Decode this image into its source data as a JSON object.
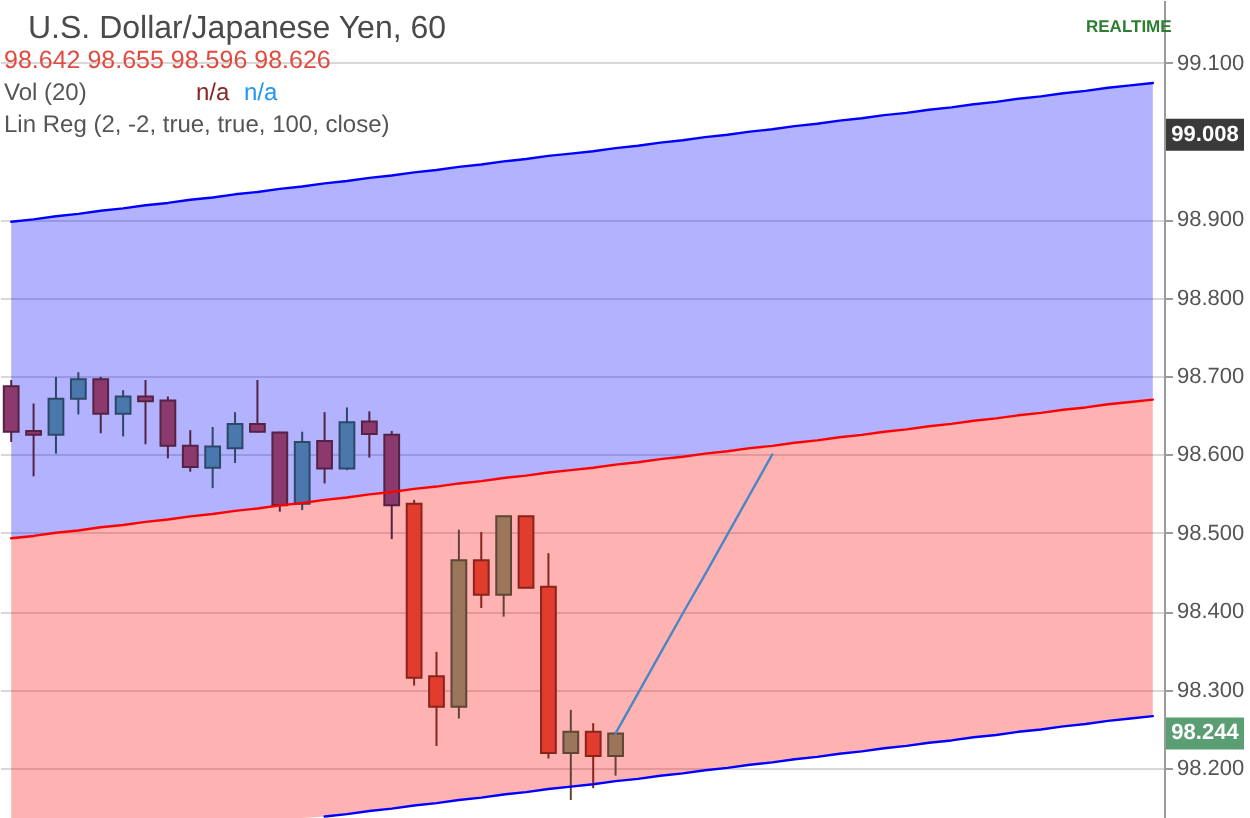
{
  "chart_data": {
    "type": "candlestick",
    "title": "U.S. Dollar/Japanese Yen, 60",
    "subtitle": "98.642 98.655 98.596 98.626",
    "annotations": [
      "Vol (20)",
      "n/a",
      "n/a",
      "Lin Reg (2, -2, true, true, 100, close)",
      "REALTIME",
      {
        "text": "99.008",
        "y": 99.008
      },
      {
        "text": "98.244",
        "y": 98.244
      }
    ],
    "categories": [
      null,
      null,
      null,
      null,
      null,
      null,
      null,
      null,
      null,
      null,
      null,
      null,
      null,
      null,
      null,
      null,
      null,
      null,
      null,
      null,
      null,
      null,
      null,
      null,
      null,
      null,
      null,
      null,
      null,
      null,
      null,
      null,
      null,
      null,
      null,
      null,
      null,
      null,
      null,
      null,
      null,
      null,
      null,
      null,
      null,
      null,
      null,
      null,
      null,
      null,
      null,
      null
    ],
    "ohlc": [
      [
        98.687,
        98.695,
        98.616,
        98.629
      ],
      [
        98.63,
        98.665,
        98.572,
        98.625
      ],
      [
        98.625,
        98.699,
        98.601,
        98.671
      ],
      [
        98.671,
        98.705,
        98.651,
        98.696
      ],
      [
        98.696,
        98.699,
        98.627,
        98.652
      ],
      [
        98.652,
        98.682,
        98.623,
        98.674
      ],
      [
        98.674,
        98.695,
        98.613,
        98.668
      ],
      [
        98.669,
        98.674,
        98.595,
        98.611
      ],
      [
        98.611,
        98.631,
        98.578,
        98.584
      ],
      [
        98.583,
        98.635,
        98.557,
        98.61
      ],
      [
        98.608,
        98.654,
        98.589,
        98.639
      ],
      [
        98.639,
        98.695,
        98.628,
        98.629
      ],
      [
        98.628,
        98.629,
        98.527,
        98.535
      ],
      [
        98.537,
        98.629,
        98.529,
        98.616
      ],
      [
        98.617,
        98.654,
        98.563,
        98.582
      ],
      [
        98.582,
        98.66,
        98.58,
        98.641
      ],
      [
        98.642,
        98.655,
        98.596,
        98.626
      ],
      [
        98.625,
        98.63,
        98.492,
        98.535
      ],
      [
        98.537,
        98.542,
        98.305,
        98.315
      ],
      [
        98.317,
        98.348,
        98.228,
        98.278
      ],
      [
        98.278,
        98.504,
        98.263,
        98.465
      ],
      [
        98.465,
        98.501,
        98.404,
        98.421
      ],
      [
        98.421,
        98.521,
        98.393,
        98.521
      ],
      [
        98.521,
        98.521,
        98.43,
        98.43
      ],
      [
        98.431,
        98.474,
        98.212,
        98.219
      ],
      [
        98.219,
        98.274,
        98.159,
        98.246
      ],
      [
        98.246,
        98.257,
        98.174,
        98.215
      ],
      [
        98.215,
        98.246,
        98.19,
        98.244
      ],
      null,
      null,
      null,
      null,
      null,
      null,
      null,
      null,
      null,
      null,
      null,
      null,
      null,
      null,
      null,
      null,
      null,
      null,
      null,
      null,
      null,
      null,
      null,
      null
    ],
    "colors": [
      "#8c3a6e",
      "#8c3a6e",
      "#4a78ad",
      "#4a78ad",
      "#8c3a6e",
      "#4a78ad",
      "#8c3a6e",
      "#8c3a6e",
      "#8c3a6e",
      "#4a78ad",
      "#4a78ad",
      "#8c3a6e",
      "#8c3a6e",
      "#4a78ad",
      "#8c3a6e",
      "#4a78ad",
      "#8c3a6e",
      "#8c3a6e",
      "#e23c2f",
      "#e23c2f",
      "#9b765a",
      "#e23c2f",
      "#9b765a",
      "#e23c2f",
      "#e23c2f",
      "#9b765a",
      "#e23c2f",
      "#9b765a",
      null,
      null,
      null,
      null,
      null,
      null,
      null,
      null,
      null,
      null,
      null,
      null,
      null,
      null,
      null,
      null,
      null,
      null,
      null,
      null,
      null,
      null,
      null,
      null
    ],
    "series": [
      {
        "type": "line",
        "color": "#0000ff",
        "values": [
          98.897,
          98.9,
          98.904,
          98.907,
          98.911,
          98.914,
          98.918,
          98.921,
          98.925,
          98.928,
          98.932,
          98.935,
          98.939,
          98.942,
          98.946,
          98.949,
          98.953,
          98.956,
          98.96,
          98.963,
          98.967,
          98.97,
          98.974,
          98.977,
          98.981,
          98.984,
          98.987,
          98.991,
          98.994,
          98.998,
          99.001,
          99.005,
          99.008,
          99.012,
          99.015,
          99.019,
          99.022,
          99.026,
          99.029,
          99.033,
          99.036,
          99.04,
          99.043,
          99.047,
          99.05,
          99.054,
          99.057,
          99.061,
          99.064,
          99.068,
          99.071,
          99.074
        ],
        "lower": [
          98.493,
          98.496,
          98.5,
          98.503,
          98.507,
          98.51,
          98.514,
          98.517,
          98.521,
          98.524,
          98.528,
          98.531,
          98.535,
          98.538,
          98.542,
          98.545,
          98.549,
          98.552,
          98.556,
          98.559,
          98.563,
          98.566,
          98.57,
          98.573,
          98.577,
          98.58,
          98.583,
          98.587,
          98.59,
          98.594,
          98.597,
          98.601,
          98.604,
          98.608,
          98.611,
          98.615,
          98.618,
          98.622,
          98.625,
          98.629,
          98.632,
          98.636,
          98.639,
          98.643,
          98.646,
          98.65,
          98.653,
          98.657,
          98.66,
          98.664,
          98.667,
          98.67
        ],
        "upper": [
          98.897,
          98.9,
          98.904,
          98.907,
          98.911,
          98.914,
          98.918,
          98.921,
          98.925,
          98.928,
          98.932,
          98.935,
          98.939,
          98.942,
          98.946,
          98.949,
          98.953,
          98.956,
          98.96,
          98.963,
          98.967,
          98.97,
          98.974,
          98.977,
          98.981,
          98.984,
          98.987,
          98.991,
          98.994,
          98.998,
          99.001,
          99.005,
          99.008,
          99.012,
          99.015,
          99.019,
          99.022,
          99.026,
          99.029,
          99.033,
          99.036,
          99.04,
          99.043,
          99.047,
          99.05,
          99.054,
          99.057,
          99.061,
          99.064,
          99.068,
          99.071,
          99.074
        ]
      },
      {
        "type": "line",
        "color": "#ff0000",
        "values": [
          98.493,
          98.496,
          98.5,
          98.503,
          98.507,
          98.51,
          98.514,
          98.517,
          98.521,
          98.524,
          98.528,
          98.531,
          98.535,
          98.538,
          98.542,
          98.545,
          98.549,
          98.552,
          98.556,
          98.559,
          98.563,
          98.566,
          98.57,
          98.573,
          98.577,
          98.58,
          98.583,
          98.587,
          98.59,
          98.594,
          98.597,
          98.601,
          98.604,
          98.608,
          98.611,
          98.615,
          98.618,
          98.622,
          98.625,
          98.629,
          98.632,
          98.636,
          98.639,
          98.643,
          98.646,
          98.65,
          98.653,
          98.657,
          98.66,
          98.664,
          98.667,
          98.67
        ],
        "lower": [
          98.136,
          98.136,
          98.136,
          98.136,
          98.136,
          98.136,
          98.136,
          98.136,
          98.136,
          98.136,
          98.136,
          98.136,
          98.136,
          98.136,
          98.138,
          98.141,
          98.145,
          98.148,
          98.152,
          98.155,
          98.159,
          98.162,
          98.166,
          98.169,
          98.173,
          98.176,
          98.179,
          98.183,
          98.186,
          98.19,
          98.193,
          98.197,
          98.2,
          98.204,
          98.207,
          98.211,
          98.214,
          98.218,
          98.221,
          98.225,
          98.228,
          98.232,
          98.235,
          98.239,
          98.242,
          98.246,
          98.249,
          98.253,
          98.256,
          98.26,
          98.263,
          98.266
        ],
        "upper": [
          98.493,
          98.496,
          98.5,
          98.503,
          98.507,
          98.51,
          98.514,
          98.517,
          98.521,
          98.524,
          98.528,
          98.531,
          98.535,
          98.538,
          98.542,
          98.545,
          98.549,
          98.552,
          98.556,
          98.559,
          98.563,
          98.566,
          98.57,
          98.573,
          98.577,
          98.58,
          98.583,
          98.587,
          98.59,
          98.594,
          98.597,
          98.601,
          98.604,
          98.608,
          98.611,
          98.615,
          98.618,
          98.622,
          98.625,
          98.629,
          98.632,
          98.636,
          98.639,
          98.643,
          98.646,
          98.65,
          98.653,
          98.657,
          98.66,
          98.664,
          98.667,
          98.67
        ]
      },
      {
        "type": "line",
        "color": "#0000ff",
        "values": [
          null,
          null,
          null,
          null,
          null,
          null,
          null,
          null,
          null,
          null,
          null,
          null,
          null,
          null,
          98.138,
          98.141,
          98.145,
          98.148,
          98.152,
          98.155,
          98.159,
          98.162,
          98.166,
          98.169,
          98.173,
          98.176,
          98.179,
          98.183,
          98.186,
          98.19,
          98.193,
          98.197,
          98.2,
          98.204,
          98.207,
          98.211,
          98.214,
          98.218,
          98.221,
          98.225,
          98.228,
          98.232,
          98.235,
          98.239,
          98.242,
          98.246,
          98.249,
          98.253,
          98.256,
          98.26,
          98.263,
          98.266
        ]
      },
      {
        "type": "line",
        "color": "#4a86c8",
        "values": [
          null,
          null,
          null,
          null,
          null,
          null,
          null,
          null,
          null,
          null,
          null,
          null,
          null,
          null,
          null,
          null,
          null,
          null,
          null,
          null,
          null,
          null,
          null,
          null,
          null,
          null,
          null,
          98.244,
          98.295,
          98.346,
          98.397,
          98.447,
          98.498,
          98.549,
          98.6,
          null,
          null,
          null,
          null,
          null,
          null,
          null,
          null,
          null,
          null,
          null,
          null,
          null,
          null,
          null,
          null,
          null
        ]
      }
    ],
    "ylim": [
      98.136,
      99.18
    ],
    "yticks": [
      {
        "value": 98.2,
        "label": "98.200"
      },
      {
        "value": 98.3,
        "label": "98.300"
      },
      {
        "value": 98.4,
        "label": "98.400"
      },
      {
        "value": 98.5,
        "label": "98.500"
      },
      {
        "value": 98.6,
        "label": "98.600"
      },
      {
        "value": 98.7,
        "label": "98.700"
      },
      {
        "value": 98.8,
        "label": "98.800"
      },
      {
        "value": 98.9,
        "label": "98.900"
      },
      {
        "value": 99.1,
        "label": "99.100"
      }
    ],
    "grid": "y",
    "tick_labels": "y"
  }
}
